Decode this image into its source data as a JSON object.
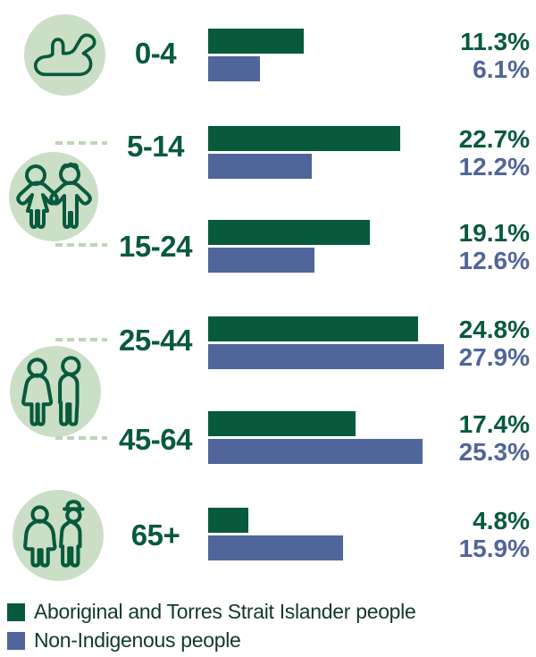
{
  "chart_data": {
    "type": "bar",
    "orientation": "horizontal",
    "title": "",
    "unit": "%",
    "grid": false,
    "legend_position": "bottom-left",
    "categories": [
      "0-4",
      "5-14",
      "15-24",
      "25-44",
      "45-64",
      "65+"
    ],
    "series": [
      {
        "name": "Aboriginal and Torres Strait Islander people",
        "color": "#085a3c",
        "values": [
          11.3,
          22.7,
          19.1,
          24.8,
          17.4,
          4.8
        ]
      },
      {
        "name": "Non-Indigenous people",
        "color": "#50659a",
        "values": [
          6.1,
          12.2,
          12.6,
          27.9,
          25.3,
          15.9
        ]
      }
    ],
    "xlim": [
      0,
      30
    ]
  },
  "rows": [
    {
      "label": "0-4",
      "indigenous_value": "11.3%",
      "non_indigenous_value": "6.1%"
    },
    {
      "label": "5-14",
      "indigenous_value": "22.7%",
      "non_indigenous_value": "12.2%"
    },
    {
      "label": "15-24",
      "indigenous_value": "19.1%",
      "non_indigenous_value": "12.6%"
    },
    {
      "label": "25-44",
      "indigenous_value": "24.8%",
      "non_indigenous_value": "27.9%"
    },
    {
      "label": "45-64",
      "indigenous_value": "17.4%",
      "non_indigenous_value": "25.3%"
    },
    {
      "label": "65+",
      "indigenous_value": "4.8%",
      "non_indigenous_value": "15.9%"
    }
  ],
  "legend": {
    "items": [
      {
        "label": "Aboriginal and Torres Strait Islander people",
        "color": "#085a3c"
      },
      {
        "label": "Non-Indigenous people",
        "color": "#50659a"
      }
    ]
  },
  "icons": [
    "baby-icon",
    "children-icon",
    "adults-icon",
    "seniors-icon"
  ],
  "colors": {
    "indigenous_green": "#085a3c",
    "non_indigenous_blue": "#50659a",
    "icon_circle_bg": "#cbdec6",
    "dash_line": "#bcd6b5",
    "legend_text": "#12382c"
  }
}
